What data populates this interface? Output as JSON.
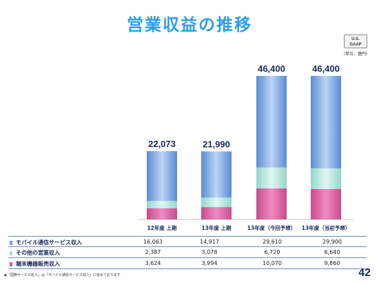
{
  "title": "営業収益の推移",
  "badge": {
    "line1": "U.S.",
    "line2": "GAAP"
  },
  "unit": "（単位：億円）",
  "chart_data": {
    "type": "bar",
    "stacked": true,
    "categories": [
      "12年度 上期",
      "13年度 上期",
      "13年度（今回予想）",
      "13年度（当初予想）"
    ],
    "totals": [
      "22,073",
      "21,990",
      "46,400",
      "46,400"
    ],
    "series": [
      {
        "name": "端末機器販売収入",
        "color": "#d85a9a",
        "values": [
          3624,
          3994,
          10070,
          9860
        ],
        "display": [
          "3,624",
          "3,994",
          "10,070",
          "9,860"
        ]
      },
      {
        "name": "その他の営業収入",
        "color": "#a8e0d8",
        "values": [
          2387,
          3078,
          6720,
          6640
        ],
        "display": [
          "2,387",
          "3,078",
          "6,720",
          "6,640"
        ]
      },
      {
        "name": "モバイル通信サービス収入",
        "color": "#6f9fe0",
        "values": [
          16063,
          14917,
          29610,
          29900
        ],
        "display": [
          "16,063",
          "14,917",
          "29,610",
          "29,900"
        ]
      }
    ],
    "table_order": [
      "モバイル通信サービス収入",
      "その他の営業収入",
      "端末機器販売収入"
    ],
    "ylim": [
      0,
      46400
    ],
    "legend": "table-left"
  },
  "footnote": "◆「国際サービス収入」は「モバイル通信サービス収入」に含めております",
  "page_number": "42"
}
